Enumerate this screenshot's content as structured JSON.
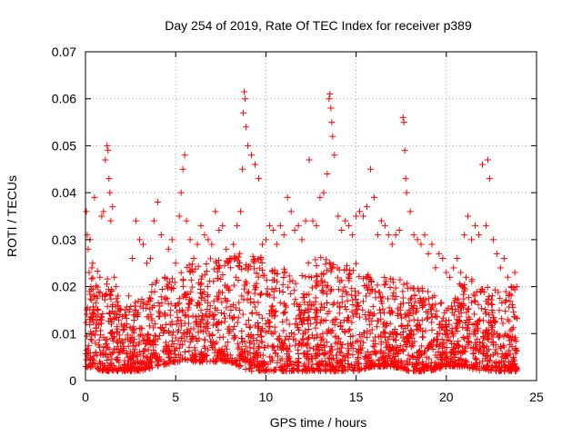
{
  "chart_data": {
    "type": "scatter",
    "title": "Day 254 of 2019, Rate Of TEC Index for receiver p389",
    "xlabel": "GPS time / hours",
    "ylabel": "ROTI / TECUs",
    "xlim": [
      0,
      25
    ],
    "ylim": [
      0,
      0.07
    ],
    "x_ticks": [
      0,
      5,
      10,
      15,
      20,
      25
    ],
    "y_ticks": [
      0,
      0.01,
      0.02,
      0.03,
      0.04,
      0.05,
      0.06,
      0.07
    ],
    "x_tick_labels": [
      "0",
      "5",
      "10",
      "15",
      "20",
      "25"
    ],
    "y_tick_labels": [
      "0",
      "0.01",
      "0.02",
      "0.03",
      "0.04",
      "0.05",
      "0.06",
      "0.07"
    ],
    "grid": true,
    "marker": "plus",
    "series": [
      {
        "name": "ROTI",
        "color": "#ff0000",
        "x": [
          0.05,
          0.1,
          0.15,
          0.2,
          0.25,
          0.3,
          0.35,
          0.4,
          0.5,
          0.6,
          0.7,
          0.8,
          0.9,
          1.0,
          1.1,
          1.2,
          1.25,
          1.3,
          1.35,
          1.4,
          1.5,
          1.6,
          1.7,
          1.8,
          1.9,
          2.0,
          2.2,
          2.4,
          2.6,
          2.8,
          3.0,
          3.2,
          3.4,
          3.6,
          3.8,
          4.0,
          4.2,
          4.4,
          4.6,
          4.8,
          5.0,
          5.2,
          5.3,
          5.4,
          5.5,
          5.6,
          5.8,
          6.0,
          6.2,
          6.4,
          6.6,
          6.8,
          7.0,
          7.2,
          7.4,
          7.6,
          7.8,
          8.0,
          8.2,
          8.4,
          8.6,
          8.7,
          8.75,
          8.8,
          8.85,
          8.9,
          9.0,
          9.2,
          9.4,
          9.6,
          9.8,
          10.0,
          10.2,
          10.4,
          10.6,
          10.8,
          11.0,
          11.2,
          11.4,
          11.6,
          11.8,
          12.0,
          12.2,
          12.4,
          12.6,
          12.8,
          13.0,
          13.2,
          13.4,
          13.5,
          13.55,
          13.6,
          13.65,
          13.7,
          13.8,
          14.0,
          14.2,
          14.4,
          14.6,
          14.8,
          15.0,
          15.2,
          15.4,
          15.6,
          15.8,
          16.0,
          16.2,
          16.4,
          16.6,
          16.8,
          17.0,
          17.2,
          17.4,
          17.6,
          17.65,
          17.7,
          17.75,
          17.8,
          18.0,
          18.2,
          18.4,
          18.6,
          18.8,
          19.0,
          19.2,
          19.4,
          19.6,
          19.8,
          20.0,
          20.2,
          20.4,
          20.6,
          20.8,
          21.0,
          21.2,
          21.4,
          21.6,
          21.8,
          22.0,
          22.2,
          22.3,
          22.4,
          22.6,
          22.8,
          23.0,
          23.2,
          23.4,
          23.6,
          23.8,
          23.9
        ],
        "y": [
          0.036,
          0.031,
          0.028,
          0.023,
          0.03,
          0.02,
          0.024,
          0.025,
          0.039,
          0.018,
          0.015,
          0.022,
          0.035,
          0.036,
          0.047,
          0.05,
          0.049,
          0.043,
          0.04,
          0.034,
          0.037,
          0.022,
          0.02,
          0.018,
          0.014,
          0.012,
          0.015,
          0.018,
          0.026,
          0.034,
          0.03,
          0.029,
          0.025,
          0.026,
          0.034,
          0.038,
          0.031,
          0.022,
          0.028,
          0.03,
          0.025,
          0.035,
          0.04,
          0.045,
          0.048,
          0.034,
          0.03,
          0.026,
          0.029,
          0.033,
          0.031,
          0.03,
          0.029,
          0.036,
          0.032,
          0.033,
          0.028,
          0.026,
          0.029,
          0.033,
          0.036,
          0.045,
          0.057,
          0.0615,
          0.06,
          0.054,
          0.05,
          0.048,
          0.046,
          0.043,
          0.029,
          0.03,
          0.033,
          0.032,
          0.029,
          0.033,
          0.031,
          0.039,
          0.036,
          0.032,
          0.033,
          0.03,
          0.034,
          0.047,
          0.034,
          0.033,
          0.039,
          0.04,
          0.044,
          0.06,
          0.061,
          0.058,
          0.055,
          0.052,
          0.048,
          0.035,
          0.032,
          0.034,
          0.033,
          0.031,
          0.035,
          0.036,
          0.035,
          0.037,
          0.045,
          0.039,
          0.031,
          0.034,
          0.033,
          0.031,
          0.029,
          0.031,
          0.032,
          0.056,
          0.055,
          0.049,
          0.043,
          0.04,
          0.036,
          0.031,
          0.03,
          0.029,
          0.031,
          0.027,
          0.029,
          0.024,
          0.027,
          0.026,
          0.023,
          0.022,
          0.024,
          0.026,
          0.023,
          0.031,
          0.035,
          0.03,
          0.033,
          0.031,
          0.046,
          0.033,
          0.047,
          0.043,
          0.03,
          0.027,
          0.024,
          0.026,
          0.022,
          0.02,
          0.023,
          0.02
        ]
      }
    ],
    "density": {
      "note": "Dense band of ROTI points between about 0.003 and 0.02 TECUs spanning 0-24 h; envelope values below are approximate upper extent of the dense band by hour.",
      "hours": [
        0,
        1,
        2,
        3,
        4,
        5,
        6,
        7,
        8,
        9,
        10,
        11,
        12,
        13,
        14,
        15,
        16,
        17,
        18,
        19,
        20,
        21,
        22,
        23,
        24
      ],
      "upper": [
        0.02,
        0.025,
        0.015,
        0.018,
        0.022,
        0.022,
        0.026,
        0.027,
        0.026,
        0.028,
        0.026,
        0.024,
        0.024,
        0.027,
        0.024,
        0.025,
        0.022,
        0.022,
        0.021,
        0.02,
        0.016,
        0.023,
        0.02,
        0.02,
        0.02
      ],
      "lower": [
        0.003,
        0.002,
        0.002,
        0.002,
        0.003,
        0.004,
        0.004,
        0.004,
        0.004,
        0.002,
        0.002,
        0.002,
        0.002,
        0.002,
        0.002,
        0.002,
        0.003,
        0.003,
        0.002,
        0.002,
        0.003,
        0.003,
        0.002,
        0.002,
        0.002
      ]
    }
  }
}
